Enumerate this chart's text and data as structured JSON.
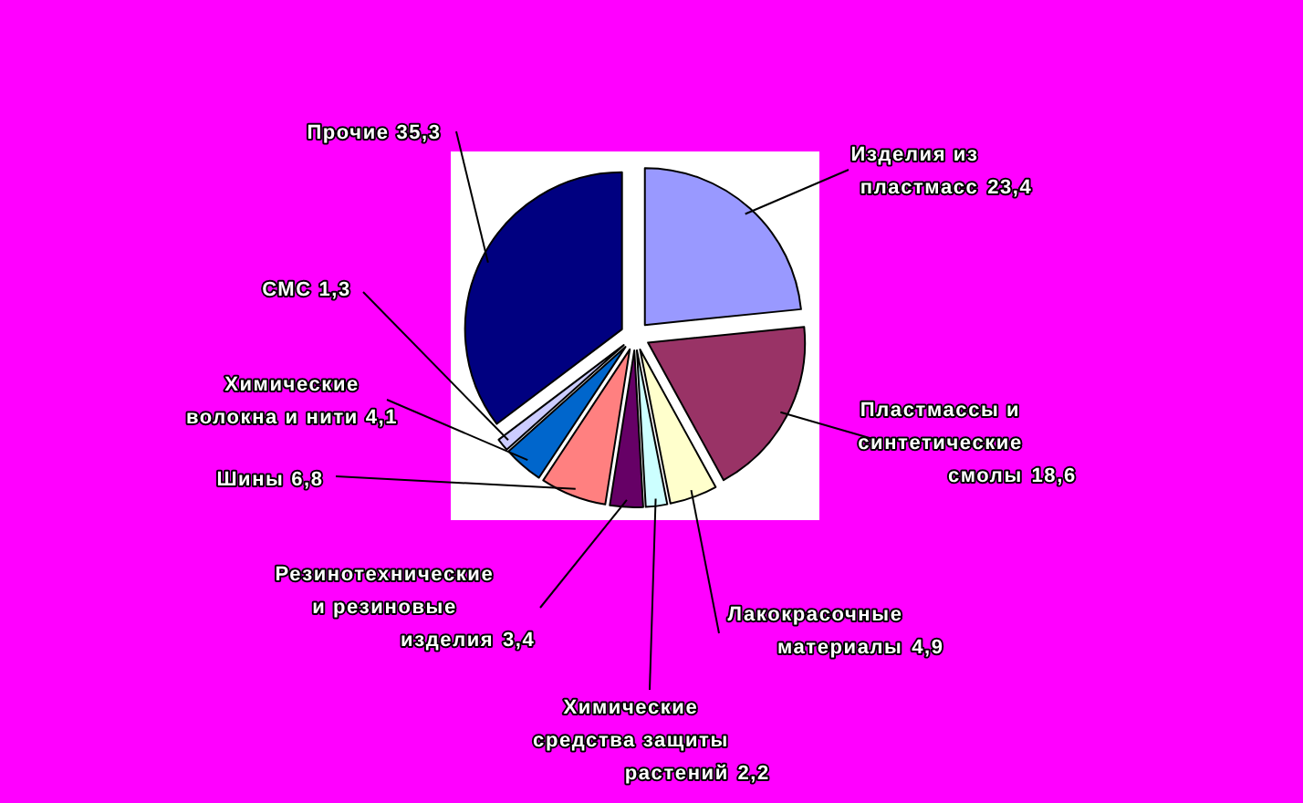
{
  "chart_data": {
    "type": "pie",
    "categories": [
      "Изделия из пластмасс",
      "Пластмассы и синтетические смолы",
      "Лакокрасочные материалы",
      "Химические средства защиты растений",
      "Резинотехнические и резиновые изделия",
      "Шины",
      "Химические волокна и нити",
      "СМС",
      "Прочие"
    ],
    "values": [
      23.4,
      18.6,
      4.9,
      2.2,
      3.4,
      6.8,
      4.1,
      1.3,
      35.3
    ],
    "value_labels": [
      "23,4",
      "18,6",
      "4,9",
      "2,2",
      "3,4",
      "6,8",
      "4,1",
      "1,3",
      "35,3"
    ],
    "colors": [
      "#9999ff",
      "#993366",
      "#ffffcc",
      "#ccffff",
      "#660066",
      "#ff8080",
      "#0066cc",
      "#ccccff",
      "#000080"
    ]
  }
}
